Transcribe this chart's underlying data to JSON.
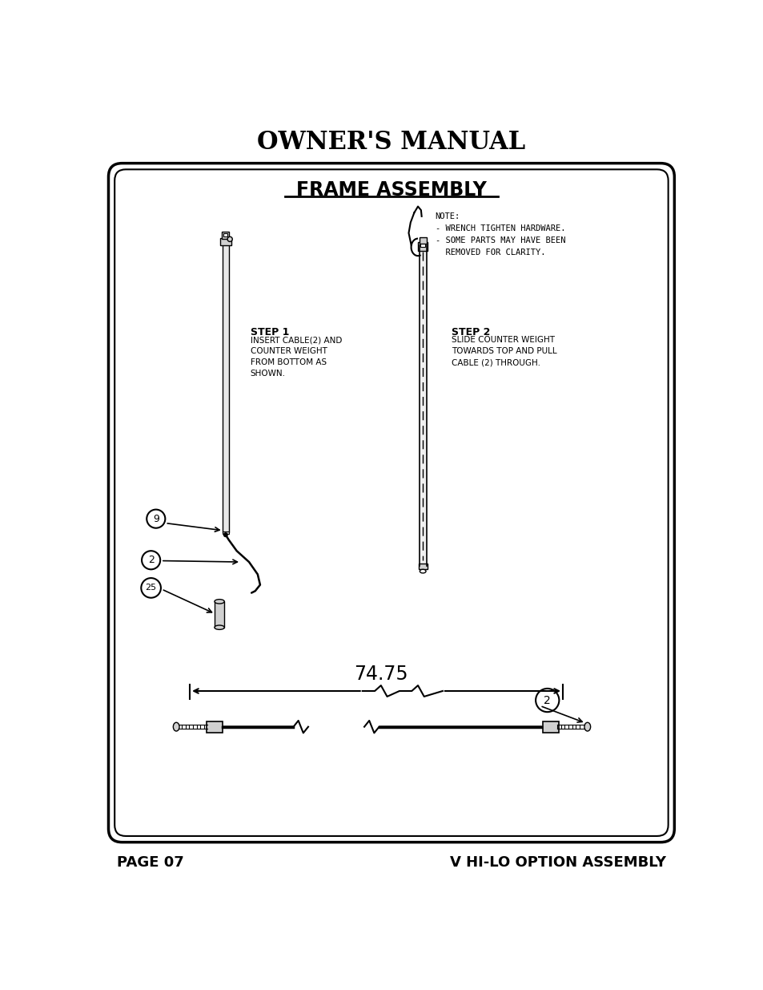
{
  "title": "OWNER'S MANUAL",
  "section_title": "FRAME ASSEMBLY",
  "note_text": "NOTE:\n- WRENCH TIGHTEN HARDWARE.\n- SOME PARTS MAY HAVE BEEN\n  REMOVED FOR CLARITY.",
  "step1_title": "STEP 1",
  "step1_text": "INSERT CABLE(2) AND\nCOUNTER WEIGHT\nFROM BOTTOM AS\nSHOWN.",
  "step2_title": "STEP 2",
  "step2_text": "SLIDE COUNTER WEIGHT\nTOWARDS TOP AND PULL\nCABLE (2) THROUGH.",
  "dimension_label": "74.75",
  "page_left": "PAGE 07",
  "page_right": "V HI-LO OPTION ASSEMBLY",
  "bg_color": "#ffffff",
  "border_color": "#000000",
  "text_color": "#000000",
  "label9": "9",
  "label2": "2",
  "label25": "25"
}
